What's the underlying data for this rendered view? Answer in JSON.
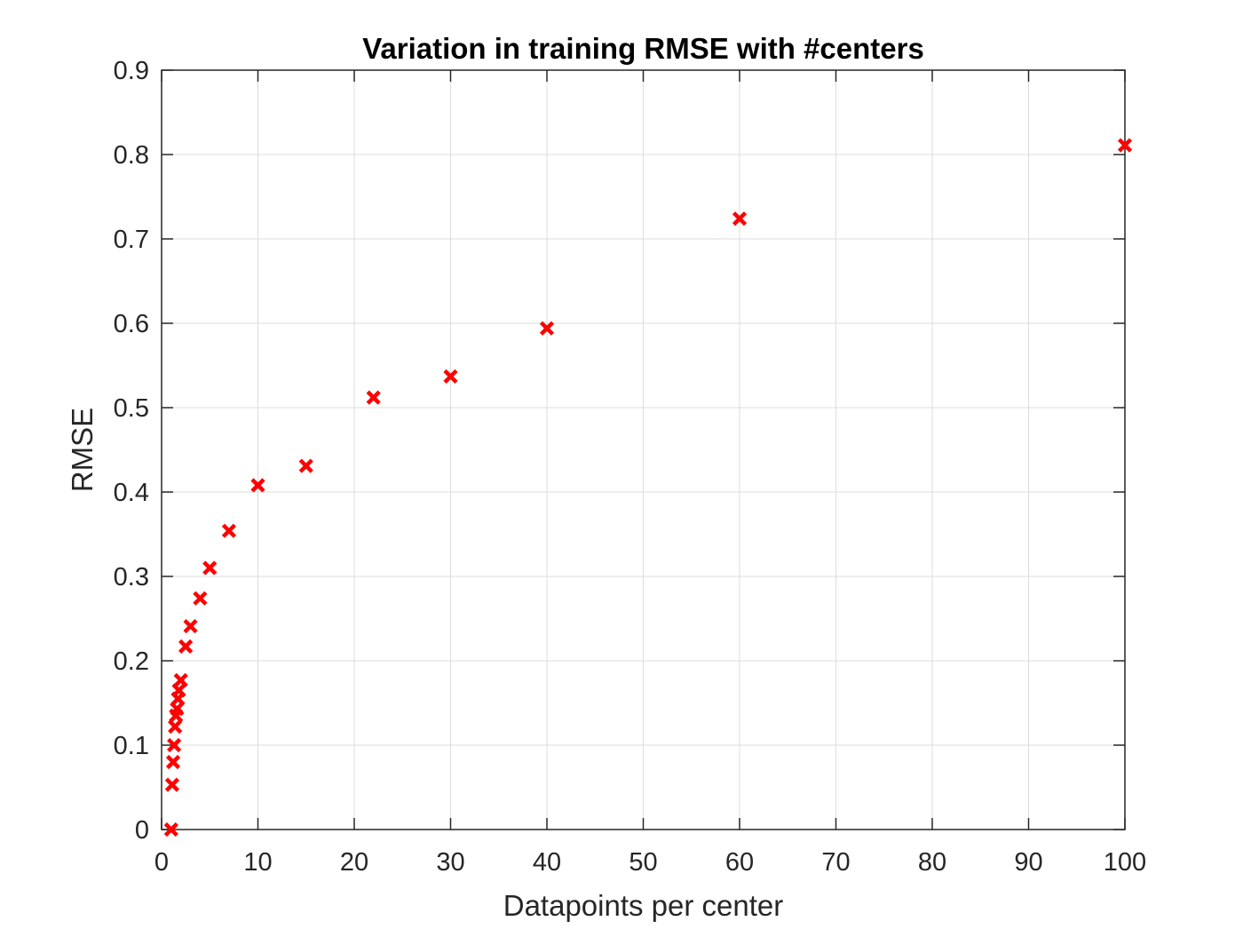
{
  "chart_data": {
    "type": "scatter",
    "title": "Variation in training RMSE with #centers",
    "xlabel": "Datapoints per center",
    "ylabel": "RMSE",
    "xlim": [
      0,
      100
    ],
    "ylim": [
      0,
      0.9
    ],
    "xticks": [
      "0",
      "10",
      "20",
      "30",
      "40",
      "50",
      "60",
      "70",
      "80",
      "90",
      "100"
    ],
    "yticks": [
      "0",
      "0.1",
      "0.2",
      "0.3",
      "0.4",
      "0.5",
      "0.6",
      "0.7",
      "0.8",
      "0.9"
    ],
    "grid": true,
    "marker": "x",
    "series": [
      {
        "color": "#ff0000",
        "points": [
          {
            "x": 1,
            "y": 0.0
          },
          {
            "x": 1.1,
            "y": 0.053
          },
          {
            "x": 1.2,
            "y": 0.08
          },
          {
            "x": 1.3,
            "y": 0.1
          },
          {
            "x": 1.4,
            "y": 0.122
          },
          {
            "x": 1.5,
            "y": 0.135
          },
          {
            "x": 1.6,
            "y": 0.143
          },
          {
            "x": 1.7,
            "y": 0.155
          },
          {
            "x": 1.8,
            "y": 0.165
          },
          {
            "x": 2,
            "y": 0.177
          },
          {
            "x": 2.5,
            "y": 0.217
          },
          {
            "x": 3,
            "y": 0.241
          },
          {
            "x": 4,
            "y": 0.274
          },
          {
            "x": 5,
            "y": 0.31
          },
          {
            "x": 7,
            "y": 0.354
          },
          {
            "x": 10,
            "y": 0.408
          },
          {
            "x": 15,
            "y": 0.431
          },
          {
            "x": 22,
            "y": 0.512
          },
          {
            "x": 30,
            "y": 0.537
          },
          {
            "x": 40,
            "y": 0.594
          },
          {
            "x": 60,
            "y": 0.724
          },
          {
            "x": 100,
            "y": 0.811
          }
        ]
      }
    ]
  }
}
